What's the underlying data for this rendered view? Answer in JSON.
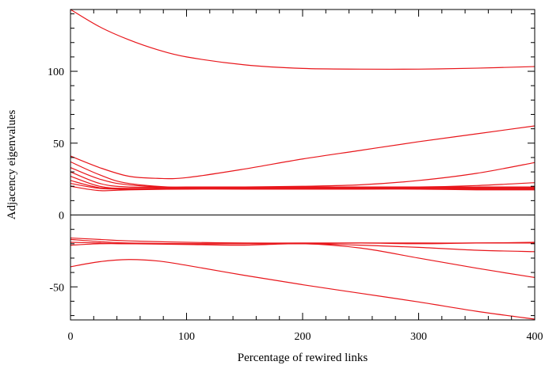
{
  "chart_data": {
    "type": "line",
    "xlabel": "Percentage of rewired links",
    "ylabel": "Adjacency eigenvalues",
    "xlim": [
      0,
      400
    ],
    "ylim": [
      -73,
      143
    ],
    "x_ticks": [
      0,
      100,
      200,
      300,
      400
    ],
    "y_ticks": [
      -50,
      0,
      50,
      100
    ],
    "x_tick_labels": [
      "0",
      "100",
      "200",
      "300",
      "400"
    ],
    "y_tick_labels": [
      "-50",
      "0",
      "50",
      "100"
    ],
    "zero_line": true,
    "grid": false,
    "legend": "none",
    "line_color": "#e8161b",
    "axis_color": "#000000",
    "series": [
      {
        "x": [
          0,
          25,
          50,
          75,
          100,
          150,
          200,
          250,
          300,
          350,
          400
        ],
        "values": [
          143,
          131,
          122,
          115,
          110,
          104.5,
          102,
          101.5,
          101.5,
          102.2,
          103.3
        ]
      },
      {
        "x": [
          0,
          25,
          50,
          75,
          100,
          150,
          200,
          250,
          300,
          350,
          400
        ],
        "values": [
          41,
          33,
          27,
          25.5,
          26,
          32,
          39,
          45,
          51,
          56.5,
          62
        ]
      },
      {
        "x": [
          0,
          25,
          50,
          100,
          150,
          200,
          250,
          300,
          350,
          400
        ],
        "values": [
          37,
          28,
          22,
          19,
          19.5,
          20,
          21,
          24,
          29,
          36.5
        ]
      },
      {
        "x": [
          0,
          25,
          50,
          100,
          150,
          200,
          250,
          300,
          350,
          400
        ],
        "values": [
          33,
          25,
          21,
          19,
          19.5,
          19.5,
          19.5,
          19.5,
          20.5,
          22.5
        ]
      },
      {
        "x": [
          0,
          25,
          50,
          100,
          150,
          200,
          250,
          300,
          350,
          400
        ],
        "values": [
          30,
          22,
          19.5,
          19.5,
          19.5,
          19.5,
          19.5,
          19.5,
          19.5,
          19.5
        ]
      },
      {
        "x": [
          0,
          25,
          50,
          100,
          150,
          200,
          250,
          300,
          350,
          400
        ],
        "values": [
          27,
          20,
          18.5,
          19,
          19,
          19,
          19,
          19,
          19,
          19
        ]
      },
      {
        "x": [
          0,
          25,
          50,
          100,
          150,
          200,
          250,
          300,
          350,
          400
        ],
        "values": [
          24,
          19,
          18.5,
          18.5,
          18.5,
          18.5,
          18.5,
          18.5,
          18.5,
          18.5
        ]
      },
      {
        "x": [
          0,
          25,
          50,
          100,
          150,
          200,
          250,
          300,
          350,
          400
        ],
        "values": [
          22,
          18.5,
          18,
          18.5,
          18.5,
          18.5,
          18.5,
          18.5,
          18,
          18
        ]
      },
      {
        "x": [
          0,
          25,
          50,
          100,
          150,
          200,
          250,
          300,
          350,
          400
        ],
        "values": [
          20,
          17,
          17.5,
          18,
          18,
          18,
          18,
          18,
          17.5,
          17.5
        ]
      },
      {
        "x": [
          0,
          25,
          50,
          100,
          150,
          200,
          250,
          300,
          350,
          400
        ],
        "values": [
          -16,
          -17,
          -18,
          -19,
          -19.5,
          -19.5,
          -19.5,
          -19.5,
          -19.5,
          -19
        ]
      },
      {
        "x": [
          0,
          25,
          50,
          100,
          150,
          200,
          250,
          300,
          350,
          400
        ],
        "values": [
          -17,
          -18.5,
          -19.5,
          -20,
          -20,
          -20,
          -19.5,
          -20,
          -19.5,
          -19.5
        ]
      },
      {
        "x": [
          0,
          25,
          50,
          100,
          150,
          200,
          250,
          300,
          350,
          400
        ],
        "values": [
          -19,
          -19.5,
          -20,
          -20,
          -20,
          -20,
          -21,
          -22.5,
          -24.5,
          -25.5
        ]
      },
      {
        "x": [
          0,
          25,
          50,
          100,
          150,
          200,
          250,
          300,
          350,
          400
        ],
        "values": [
          -21,
          -20,
          -20,
          -20.5,
          -21,
          -20,
          -23,
          -30,
          -37,
          -43.5
        ]
      },
      {
        "x": [
          0,
          25,
          50,
          75,
          100,
          150,
          200,
          250,
          300,
          350,
          400
        ],
        "values": [
          -36,
          -32.5,
          -31,
          -32,
          -35,
          -42,
          -48.5,
          -54.5,
          -60.5,
          -67,
          -72.5
        ]
      }
    ]
  }
}
